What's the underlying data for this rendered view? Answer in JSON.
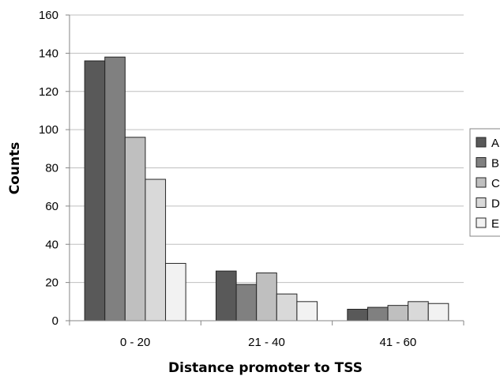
{
  "chart_data": {
    "type": "bar",
    "title": "",
    "xlabel": "Distance promoter to TSS",
    "ylabel": "Counts",
    "ylim": [
      0,
      160
    ],
    "yticks": [
      0,
      20,
      40,
      60,
      80,
      100,
      120,
      140,
      160
    ],
    "grid": true,
    "legend_position": "right",
    "categories": [
      "0 - 20",
      "21 - 40",
      "41 - 60"
    ],
    "series": [
      {
        "name": "A",
        "color": "#595959",
        "values": [
          136,
          26,
          6
        ]
      },
      {
        "name": "B",
        "color": "#808080",
        "values": [
          138,
          19,
          7
        ]
      },
      {
        "name": "C",
        "color": "#bfbfbf",
        "values": [
          96,
          25,
          8
        ]
      },
      {
        "name": "D",
        "color": "#d9d9d9",
        "values": [
          74,
          14,
          10
        ]
      },
      {
        "name": "E",
        "color": "#f2f2f2",
        "values": [
          30,
          10,
          9
        ]
      }
    ]
  }
}
